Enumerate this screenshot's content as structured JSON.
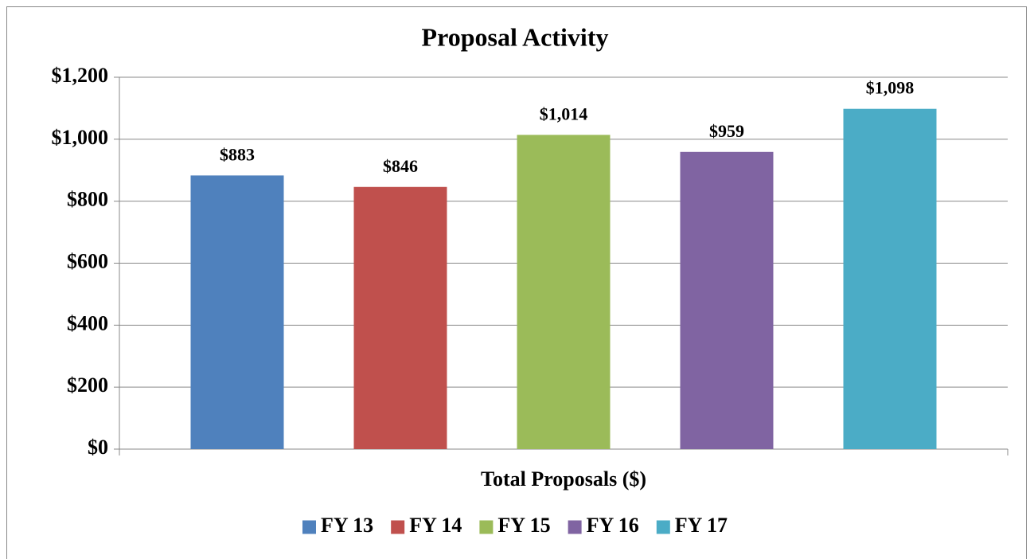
{
  "chart_data": {
    "type": "bar",
    "title": "Proposal Activity",
    "categories": [
      "Total Proposals ($)"
    ],
    "series": [
      {
        "name": "FY 13",
        "color": "#4f81bd",
        "values": [
          883
        ],
        "value_labels": [
          "$883"
        ]
      },
      {
        "name": "FY 14",
        "color": "#c0504d",
        "values": [
          846
        ],
        "value_labels": [
          "$846"
        ]
      },
      {
        "name": "FY 15",
        "color": "#9bbb59",
        "values": [
          1014
        ],
        "value_labels": [
          "$1,014"
        ]
      },
      {
        "name": "FY 16",
        "color": "#8064a2",
        "values": [
          959
        ],
        "value_labels": [
          "$959"
        ]
      },
      {
        "name": "FY 17",
        "color": "#4bacc6",
        "values": [
          1098
        ],
        "value_labels": [
          "$1,098"
        ]
      }
    ],
    "ylim": [
      0,
      1200
    ],
    "yticks": [
      {
        "value": 0,
        "label": "$0"
      },
      {
        "value": 200,
        "label": "$200"
      },
      {
        "value": 400,
        "label": "$400"
      },
      {
        "value": 600,
        "label": "$600"
      },
      {
        "value": 800,
        "label": "$800"
      },
      {
        "value": 1000,
        "label": "$1,000"
      },
      {
        "value": 1200,
        "label": "$1,200"
      }
    ],
    "grid": true,
    "legend": "bottom"
  }
}
